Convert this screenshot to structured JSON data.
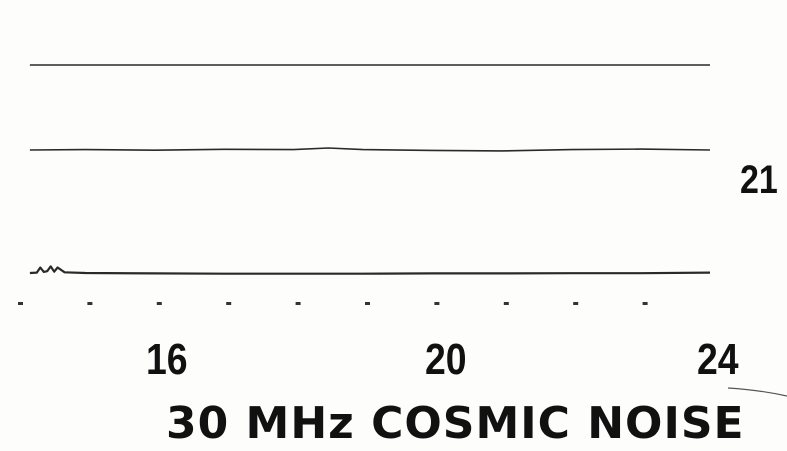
{
  "chart_data": {
    "type": "line",
    "title": "30 MHz COSMIC NOISE",
    "day_label": "21",
    "x_ticks": [
      "16",
      "20",
      "24"
    ],
    "xlim": [
      14,
      24
    ],
    "minor_tick_hours": [
      14,
      15,
      16,
      17,
      18,
      19,
      20,
      21,
      22,
      23
    ],
    "series": [
      {
        "x": [
          14.2,
          24
        ],
        "y": [
          1,
          1
        ]
      },
      {
        "x": [
          14.2,
          15,
          16,
          17,
          18,
          18.5,
          19,
          20,
          21,
          22,
          23,
          24
        ],
        "y": [
          0,
          0.02,
          -0.01,
          0.03,
          0.02,
          0.09,
          0.02,
          -0.02,
          -0.04,
          0.02,
          0.04,
          0
        ]
      },
      {
        "x": [
          14.2,
          14.3,
          14.35,
          14.4,
          14.45,
          14.5,
          14.55,
          14.6,
          14.7,
          15,
          16,
          17,
          18,
          19,
          20,
          21,
          22,
          23,
          24
        ],
        "y": [
          0,
          0.02,
          0.25,
          0.05,
          0.08,
          0.3,
          0.06,
          0.25,
          0.03,
          0,
          -0.02,
          -0.03,
          -0.03,
          -0.03,
          -0.02,
          -0.02,
          -0.01,
          -0.01,
          0.02
        ]
      }
    ]
  },
  "colors": {
    "trace": "#2a2a2a",
    "background": "#fdfdfb",
    "text": "#111111"
  }
}
